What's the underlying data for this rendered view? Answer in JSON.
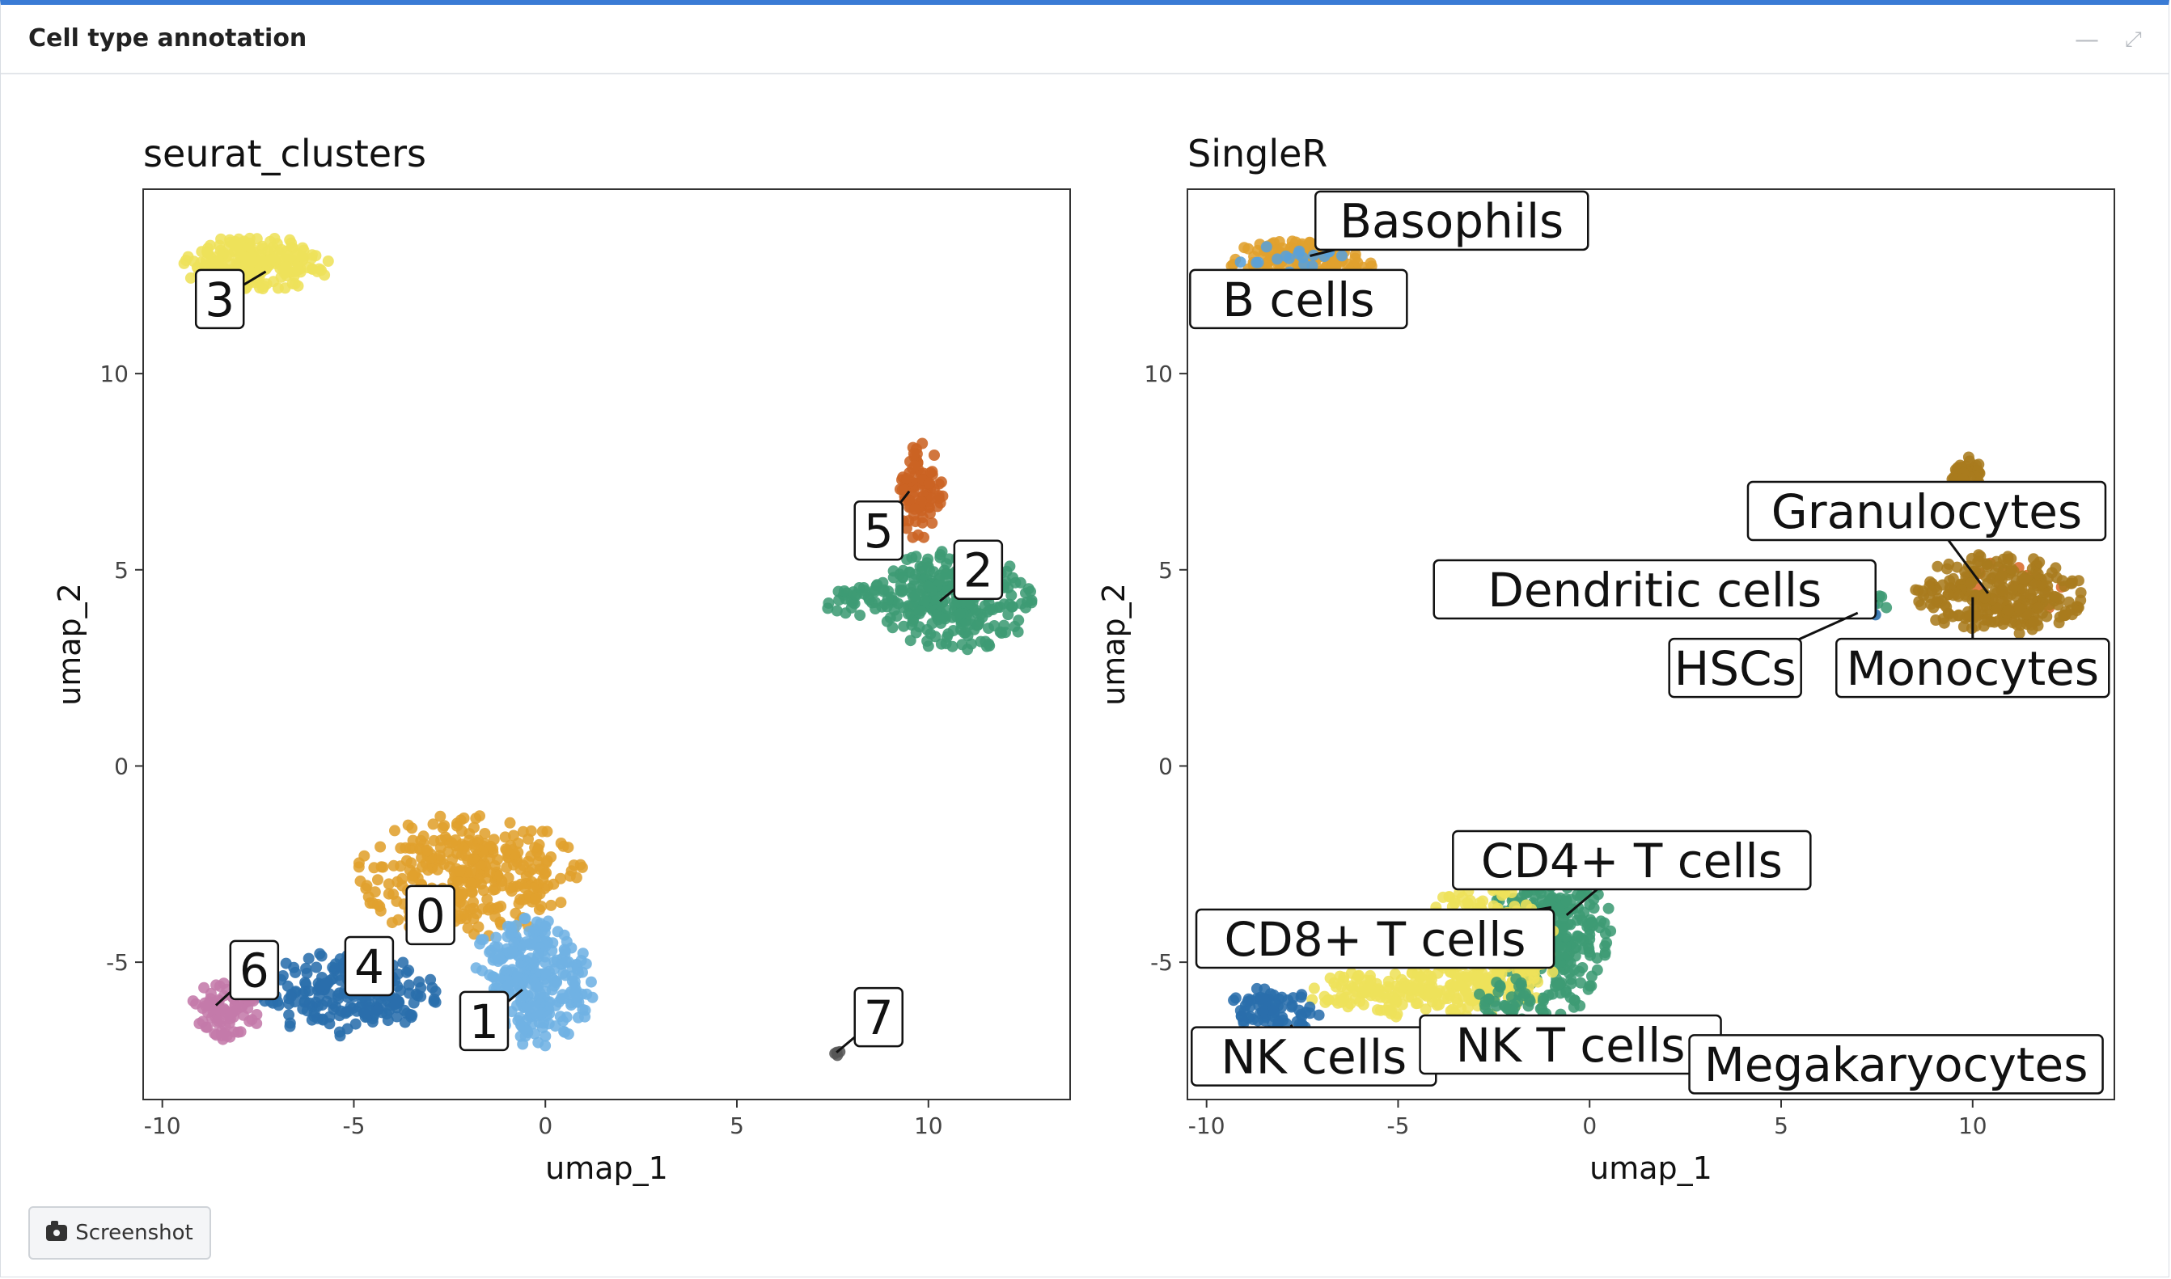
{
  "box": {
    "title": "Cell type annotation",
    "minimize_icon": "minus-icon",
    "expand_icon": "expand-icon"
  },
  "screenshot_button": {
    "label": "Screenshot",
    "icon": "camera-icon"
  },
  "chart_data": [
    {
      "type": "scatter",
      "title": "seurat_clusters",
      "xlabel": "umap_1",
      "ylabel": "umap_2",
      "xlim": [
        -10.5,
        13.7
      ],
      "ylim": [
        -8.5,
        14.7
      ],
      "xticks": [
        -10,
        -5,
        0,
        5,
        10
      ],
      "yticks": [
        -5,
        0,
        5,
        10
      ],
      "xtick_labels": [
        "-10",
        "-5",
        "0",
        "5",
        "10"
      ],
      "ytick_labels": [
        "-5",
        "0",
        "5",
        "10"
      ],
      "grid": false,
      "legend": "none",
      "series": [
        {
          "name": "0",
          "color": "#E0A12E",
          "clusters": [
            {
              "cx": -2.0,
              "cy": -2.8,
              "rx": 3.0,
              "ry": 1.6,
              "n": 340
            }
          ],
          "label": {
            "text": "0",
            "x": -3.0,
            "y": -3.8,
            "px": -3.0,
            "py": -4.5
          }
        },
        {
          "name": "1",
          "color": "#6FB2E4",
          "clusters": [
            {
              "cx": -0.4,
              "cy": -5.5,
              "rx": 1.7,
              "ry": 1.7,
              "n": 300
            }
          ],
          "label": {
            "text": "1",
            "x": -1.6,
            "y": -6.5,
            "px": -0.6,
            "py": -5.7
          }
        },
        {
          "name": "2",
          "color": "#3E9B74",
          "clusters": [
            {
              "cx": 10.6,
              "cy": 4.2,
              "rx": 2.2,
              "ry": 1.3,
              "n": 300
            },
            {
              "cx": 8.2,
              "cy": 4.2,
              "rx": 1.0,
              "ry": 0.45,
              "n": 30
            }
          ],
          "label": {
            "text": "2",
            "x": 11.3,
            "y": 5.0,
            "px": 10.3,
            "py": 4.2
          }
        },
        {
          "name": "3",
          "color": "#EEE15A",
          "clusters": [
            {
              "cx": -7.6,
              "cy": 12.8,
              "rx": 2.0,
              "ry": 0.75,
              "n": 220
            }
          ],
          "label": {
            "text": "3",
            "x": -8.5,
            "y": 11.9,
            "px": -7.3,
            "py": 12.6
          }
        },
        {
          "name": "4",
          "color": "#2A6EAC",
          "clusters": [
            {
              "cx": -5.2,
              "cy": -5.8,
              "rx": 2.4,
              "ry": 1.1,
              "n": 220
            }
          ],
          "label": {
            "text": "4",
            "x": -4.6,
            "y": -5.1,
            "px": -5.0,
            "py": -5.5
          }
        },
        {
          "name": "5",
          "color": "#CB6323",
          "clusters": [
            {
              "cx": 9.8,
              "cy": 7.0,
              "rx": 0.6,
              "ry": 1.3,
              "n": 90
            }
          ],
          "label": {
            "text": "5",
            "x": 8.7,
            "y": 6.0,
            "px": 9.5,
            "py": 7.0
          }
        },
        {
          "name": "6",
          "color": "#C47AAA",
          "clusters": [
            {
              "cx": -8.4,
              "cy": -6.2,
              "rx": 1.0,
              "ry": 0.8,
              "n": 80
            }
          ],
          "label": {
            "text": "6",
            "x": -7.6,
            "y": -5.2,
            "px": -8.6,
            "py": -6.1
          }
        },
        {
          "name": "7",
          "color": "#555555",
          "clusters": [
            {
              "cx": 7.6,
              "cy": -7.3,
              "rx": 0.1,
              "ry": 0.1,
              "n": 4
            }
          ],
          "label": {
            "text": "7",
            "x": 8.7,
            "y": -6.4,
            "px": 7.6,
            "py": -7.3
          }
        }
      ]
    },
    {
      "type": "scatter",
      "title": "SingleR",
      "xlabel": "umap_1",
      "ylabel": "umap_2",
      "xlim": [
        -10.5,
        13.7
      ],
      "ylim": [
        -8.5,
        14.7
      ],
      "xticks": [
        -10,
        -5,
        0,
        5,
        10
      ],
      "yticks": [
        -5,
        0,
        5,
        10
      ],
      "xtick_labels": [
        "-10",
        "-5",
        "0",
        "5",
        "10"
      ],
      "ytick_labels": [
        "-5",
        "0",
        "5",
        "10"
      ],
      "grid": false,
      "legend": "none",
      "series": [
        {
          "name": "Basophils",
          "color": "#E0A12E",
          "clusters": [
            {
              "cx": -7.6,
              "cy": 12.8,
              "rx": 2.0,
              "ry": 0.6,
              "n": 160
            }
          ],
          "label": {
            "text": "Basophils",
            "x": -3.6,
            "y": 13.9,
            "px": -7.3,
            "py": 13.0
          }
        },
        {
          "name": "B cells",
          "color": "#5AA0D8",
          "clusters": [
            {
              "cx": -7.6,
              "cy": 12.9,
              "rx": 1.6,
              "ry": 0.5,
              "n": 18
            }
          ],
          "label": {
            "text": "B cells",
            "x": -7.6,
            "y": 11.9,
            "px": -8.0,
            "py": 12.5
          }
        },
        {
          "name": "Granulocytes",
          "color": "#D96A2A",
          "clusters": [
            {
              "cx": 10.5,
              "cy": 4.5,
              "rx": 2.0,
              "ry": 1.0,
              "n": 14
            }
          ],
          "label": {
            "text": "Granulocytes",
            "x": 8.8,
            "y": 6.5,
            "px": 10.4,
            "py": 4.4
          }
        },
        {
          "name": "Monocytes",
          "color": "#A87B1E",
          "clusters": [
            {
              "cx": 10.7,
              "cy": 4.4,
              "rx": 2.2,
              "ry": 1.1,
              "n": 280
            },
            {
              "cx": 9.8,
              "cy": 7.3,
              "rx": 0.45,
              "ry": 0.7,
              "n": 50
            }
          ],
          "label": {
            "text": "Monocytes",
            "x": 10.0,
            "y": 2.5,
            "px": 10.0,
            "py": 4.3
          }
        },
        {
          "name": "Dendritic cells",
          "color": "#3E9B74",
          "clusters": [
            {
              "cx": 7.6,
              "cy": 4.2,
              "rx": 0.3,
              "ry": 0.2,
              "n": 5
            }
          ],
          "label": {
            "text": "Dendritic cells",
            "x": 1.7,
            "y": 4.5,
            "px": 7.5,
            "py": 4.2
          }
        },
        {
          "name": "HSCs",
          "color": "#2A6EAC",
          "clusters": [
            {
              "cx": 7.3,
              "cy": 4.0,
              "rx": 0.3,
              "ry": 0.2,
              "n": 5
            }
          ],
          "label": {
            "text": "HSCs",
            "x": 3.8,
            "y": 2.5,
            "px": 7.0,
            "py": 3.9
          }
        },
        {
          "name": "CD4+ T cells",
          "color": "#3E9B74",
          "clusters": [
            {
              "cx": -1.0,
              "cy": -4.2,
              "rx": 1.6,
              "ry": 2.2,
              "n": 320
            }
          ],
          "label": {
            "text": "CD4+ T cells",
            "x": 1.1,
            "y": -2.4,
            "px": -0.6,
            "py": -3.8
          }
        },
        {
          "name": "CD8+ T cells",
          "color": "#EEE15A",
          "clusters": [
            {
              "cx": -2.8,
              "cy": -4.8,
              "rx": 2.0,
              "ry": 1.8,
              "n": 300
            },
            {
              "cx": -5.0,
              "cy": -5.8,
              "rx": 2.5,
              "ry": 0.6,
              "n": 140
            }
          ],
          "label": {
            "text": "CD8+ T cells",
            "x": -5.6,
            "y": -4.4,
            "px": -1.0,
            "py": -3.6
          }
        },
        {
          "name": "NK cells",
          "color": "#2A6EAC",
          "clusters": [
            {
              "cx": -8.2,
              "cy": -6.2,
              "rx": 1.2,
              "ry": 0.6,
              "n": 80
            }
          ],
          "label": {
            "text": "NK cells",
            "x": -7.2,
            "y": -7.4,
            "px": -7.8,
            "py": -6.6
          }
        },
        {
          "name": "NK T cells",
          "color": "#3E9B74",
          "clusters": [
            {
              "cx": -2.0,
              "cy": -6.0,
              "rx": 1.0,
              "ry": 0.6,
              "n": 40
            }
          ],
          "label": {
            "text": "NK T cells",
            "x": -0.5,
            "y": -7.1,
            "px": -0.8,
            "py": -6.4
          }
        },
        {
          "name": "Megakaryocytes",
          "color": "#8A8A8A",
          "clusters": [],
          "label": {
            "text": "Megakaryocytes",
            "x": 8.0,
            "y": -7.6,
            "px": 7.6,
            "py": -7.3
          }
        }
      ]
    }
  ]
}
